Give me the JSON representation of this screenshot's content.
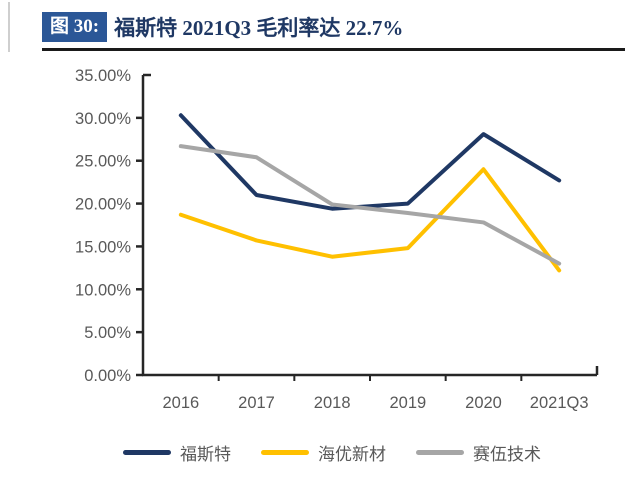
{
  "header": {
    "figure_label": "图 30:",
    "title": "福斯特 2021Q3 毛利率达 22.7%"
  },
  "colors": {
    "header_box": "#2B5797",
    "title_text": "#1F3864",
    "header_rule": "#1A1A1A",
    "axis_line": "#262626",
    "tick_label": "#595959",
    "series_foster": "#1F3864",
    "series_hiuv": "#FFC000",
    "series_cybrid": "#A6A6A6"
  },
  "chart_data": {
    "type": "line",
    "title": "福斯特 2021Q3 毛利率达 22.7%",
    "categories": [
      "2016",
      "2017",
      "2018",
      "2019",
      "2020",
      "2021Q3"
    ],
    "series": [
      {
        "name": "福斯特",
        "color": "#1F3864",
        "values": [
          30.3,
          21.0,
          19.4,
          20.0,
          28.1,
          22.7
        ]
      },
      {
        "name": "海优新材",
        "color": "#FFC000",
        "values": [
          18.7,
          15.7,
          13.8,
          14.8,
          24.0,
          12.2
        ]
      },
      {
        "name": "赛伍技术",
        "color": "#A6A6A6",
        "values": [
          26.7,
          25.4,
          19.9,
          18.9,
          17.8,
          13.0
        ]
      }
    ],
    "xlabel": "",
    "ylabel": "",
    "ylim": [
      0,
      35
    ],
    "y_tick_step": 5,
    "y_ticks": [
      "0.00%",
      "5.00%",
      "10.00%",
      "15.00%",
      "20.00%",
      "25.00%",
      "30.00%",
      "35.00%"
    ],
    "grid": false,
    "legend_position": "bottom",
    "line_width": 4
  }
}
